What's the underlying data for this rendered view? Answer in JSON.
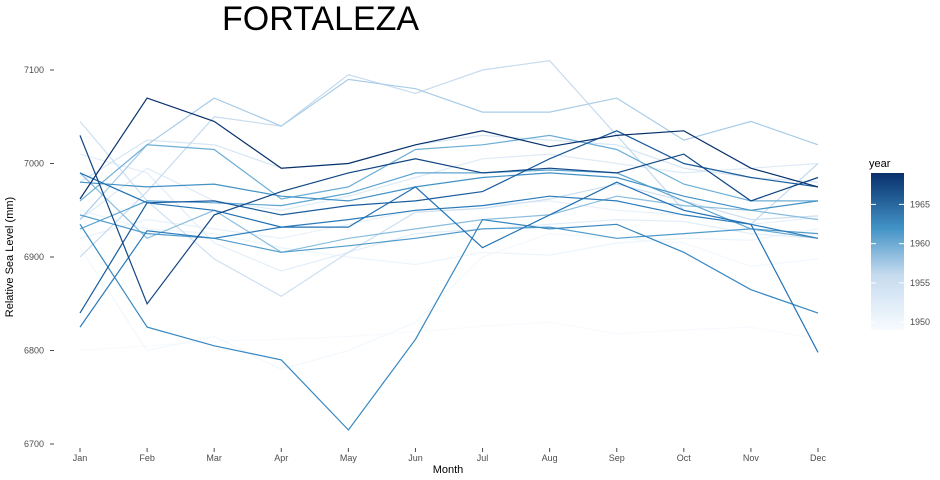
{
  "chart_data": {
    "type": "line",
    "title": "FORTALEZA",
    "xlabel": "Month",
    "ylabel": "Relative Sea Level (mm)",
    "categories": [
      "Jan",
      "Feb",
      "Mar",
      "Apr",
      "May",
      "Jun",
      "Jul",
      "Aug",
      "Sep",
      "Oct",
      "Nov",
      "Dec"
    ],
    "y_ticks": [
      6700,
      6800,
      6900,
      7000,
      7100
    ],
    "ylim": [
      6695,
      7115
    ],
    "grid": false,
    "legend": {
      "title": "year",
      "position": "right",
      "type": "colorbar",
      "ticks": [
        1950,
        1955,
        1960,
        1965
      ],
      "range": [
        1949,
        1969
      ],
      "low_color": "#f7fbff",
      "high_color": "#08306b"
    },
    "series": [
      {
        "year": 1949,
        "values": [
          6800,
          6805,
          6810,
          6812,
          6815,
          6820,
          6826,
          6830,
          6818,
          6822,
          6825,
          6812
        ]
      },
      {
        "year": 1950,
        "values": [
          6910,
          6800,
          6815,
          6780,
          6800,
          6830,
          6900,
          6925,
          6920,
          6915,
          6890,
          6898
        ]
      },
      {
        "year": 1951,
        "values": [
          6950,
          6930,
          6925,
          6910,
          6900,
          6892,
          6905,
          6902,
          6915,
          6920,
          6918,
          6930
        ]
      },
      {
        "year": 1952,
        "values": [
          6920,
          6940,
          6930,
          6920,
          6935,
          6950,
          6955,
          6960,
          6950,
          6945,
          6935,
          6942
        ]
      },
      {
        "year": 1953,
        "values": [
          7010,
          6990,
          6915,
          6885,
          6905,
          6925,
          6930,
          6935,
          6940,
          6938,
          6925,
          6920
        ]
      },
      {
        "year": 1954,
        "values": [
          6940,
          6995,
          6960,
          6950,
          6965,
          6985,
          7005,
          7010,
          7000,
          6990,
          6995,
          7000
        ]
      },
      {
        "year": 1955,
        "values": [
          6980,
          7025,
          7020,
          6995,
          7000,
          7020,
          7030,
          7025,
          7020,
          6995,
          6985,
          6980
        ]
      },
      {
        "year": 1956,
        "values": [
          7045,
          6960,
          6898,
          6858,
          6905,
          6948,
          6952,
          6962,
          6978,
          6960,
          6940,
          6944
        ]
      },
      {
        "year": 1957,
        "values": [
          6900,
          6970,
          7050,
          7040,
          7095,
          7075,
          7100,
          7110,
          7030,
          6950,
          6935,
          7000
        ]
      },
      {
        "year": 1958,
        "values": [
          6940,
          7020,
          7070,
          7040,
          7090,
          7080,
          7055,
          7055,
          7070,
          7025,
          7045,
          7020
        ]
      },
      {
        "year": 1959,
        "values": [
          6990,
          6920,
          6950,
          6905,
          6920,
          6930,
          6940,
          6945,
          6965,
          6955,
          6950,
          6940
        ]
      },
      {
        "year": 1960,
        "values": [
          6960,
          7020,
          7015,
          6962,
          6975,
          7015,
          7020,
          7030,
          7015,
          6978,
          6960,
          6960
        ]
      },
      {
        "year": 1961,
        "values": [
          6930,
          6960,
          6958,
          6955,
          6968,
          6990,
          6990,
          6993,
          6990,
          6960,
          6930,
          6920
        ]
      },
      {
        "year": 1962,
        "values": [
          6945,
          6925,
          6920,
          6905,
          6912,
          6920,
          6930,
          6932,
          6920,
          6925,
          6930,
          6925
        ]
      },
      {
        "year": 1963,
        "values": [
          6980,
          6975,
          6978,
          6965,
          6960,
          6975,
          6985,
          6990,
          6985,
          6965,
          6950,
          6960
        ]
      },
      {
        "year": 1964,
        "values": [
          6935,
          6825,
          6805,
          6790,
          6715,
          6812,
          6940,
          6930,
          6935,
          6905,
          6865,
          6840
        ]
      },
      {
        "year": 1965,
        "values": [
          6825,
          6928,
          6920,
          6932,
          6940,
          6950,
          6955,
          6965,
          6960,
          6945,
          6935,
          6920
        ]
      },
      {
        "year": 1966,
        "values": [
          6990,
          6958,
          6950,
          6932,
          6932,
          6975,
          6910,
          6945,
          6980,
          6950,
          6935,
          6798
        ]
      },
      {
        "year": 1967,
        "values": [
          6840,
          6958,
          6960,
          6945,
          6955,
          6960,
          6970,
          7005,
          7035,
          7000,
          6985,
          6975
        ]
      },
      {
        "year": 1968,
        "values": [
          7030,
          6850,
          6945,
          6970,
          6990,
          7005,
          6990,
          6995,
          6990,
          7010,
          6960,
          6985
        ]
      },
      {
        "year": 1969,
        "values": [
          6962,
          7070,
          7045,
          6995,
          7000,
          7020,
          7035,
          7018,
          7030,
          7035,
          6995,
          6975
        ]
      }
    ]
  }
}
